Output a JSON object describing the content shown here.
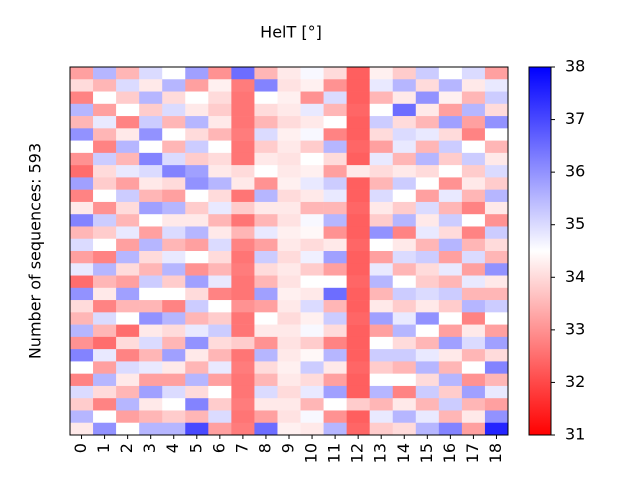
{
  "chart_data": {
    "type": "heatmap",
    "title": "HelT [°]",
    "ylabel": "Number of sequences: 593",
    "categories": [
      "0",
      "1",
      "2",
      "3",
      "4",
      "5",
      "6",
      "7",
      "8",
      "9",
      "10",
      "11",
      "12",
      "13",
      "14",
      "15",
      "16",
      "17",
      "18"
    ],
    "clim": [
      31,
      38
    ],
    "cticks": [
      31,
      32,
      33,
      34,
      35,
      36,
      37,
      38
    ],
    "colormap": "bwr",
    "z": [
      [
        33.2,
        35.5,
        33.5,
        35.0,
        34.5,
        35.8,
        33.0,
        36.5,
        33.5,
        34.2,
        34.6,
        34.0,
        32.3,
        34.3,
        33.8,
        35.2,
        34.5,
        35.0,
        33.2
      ],
      [
        34.0,
        33.5,
        35.0,
        34.2,
        35.5,
        33.2,
        34.3,
        32.7,
        36.2,
        34.1,
        34.3,
        33.0,
        32.3,
        34.8,
        35.5,
        34.0,
        35.5,
        34.2,
        34.8
      ],
      [
        32.8,
        34.5,
        33.8,
        35.5,
        34.0,
        34.5,
        34.0,
        32.6,
        34.5,
        34.3,
        33.0,
        35.0,
        32.3,
        33.5,
        34.2,
        36.0,
        34.3,
        33.5,
        35.2
      ],
      [
        35.5,
        33.2,
        34.5,
        33.8,
        35.0,
        34.2,
        33.8,
        32.6,
        34.0,
        34.2,
        34.8,
        33.5,
        32.4,
        34.5,
        36.5,
        34.2,
        33.2,
        35.5,
        34.0
      ],
      [
        33.5,
        34.8,
        32.8,
        35.2,
        33.5,
        35.5,
        34.2,
        32.6,
        33.5,
        34.0,
        34.2,
        34.5,
        32.3,
        35.2,
        34.0,
        33.5,
        35.8,
        33.2,
        36.0
      ],
      [
        36.0,
        33.5,
        34.2,
        36.0,
        34.5,
        34.0,
        33.5,
        32.7,
        35.0,
        34.3,
        34.6,
        32.8,
        32.3,
        34.0,
        35.0,
        34.8,
        34.0,
        32.8,
        34.5
      ],
      [
        34.5,
        32.8,
        35.5,
        34.5,
        33.5,
        35.2,
        34.5,
        32.6,
        33.8,
        34.2,
        33.8,
        35.5,
        32.4,
        33.2,
        34.8,
        33.5,
        35.2,
        34.5,
        33.5
      ],
      [
        33.0,
        35.2,
        33.5,
        36.2,
        35.0,
        33.8,
        34.0,
        32.6,
        34.2,
        34.1,
        34.5,
        34.0,
        32.3,
        34.8,
        33.5,
        35.5,
        33.8,
        35.2,
        34.2
      ],
      [
        32.5,
        34.0,
        34.8,
        35.0,
        36.2,
        35.8,
        34.2,
        34.0,
        34.5,
        34.2,
        34.3,
        33.2,
        34.2,
        34.0,
        34.2,
        34.0,
        34.5,
        33.8,
        35.0
      ],
      [
        35.8,
        33.8,
        33.2,
        34.2,
        34.0,
        36.0,
        35.5,
        34.2,
        33.0,
        34.3,
        34.8,
        35.2,
        32.3,
        33.5,
        35.2,
        34.5,
        33.0,
        34.2,
        33.8
      ],
      [
        32.8,
        34.5,
        35.2,
        33.5,
        33.2,
        34.5,
        34.0,
        32.6,
        35.5,
        34.0,
        34.2,
        34.8,
        32.3,
        35.0,
        34.5,
        33.2,
        34.8,
        33.5,
        35.5
      ],
      [
        34.2,
        33.0,
        34.0,
        35.8,
        35.5,
        33.8,
        34.8,
        33.8,
        34.2,
        34.2,
        33.5,
        33.5,
        32.4,
        34.2,
        33.8,
        35.0,
        33.5,
        32.8,
        34.2
      ],
      [
        36.2,
        35.2,
        33.5,
        34.5,
        34.2,
        34.2,
        33.5,
        32.6,
        33.5,
        34.1,
        34.6,
        35.5,
        32.3,
        33.8,
        35.5,
        34.2,
        35.2,
        34.5,
        33.0
      ],
      [
        33.5,
        33.8,
        34.8,
        33.2,
        35.0,
        35.5,
        34.2,
        33.5,
        34.8,
        34.3,
        34.4,
        33.0,
        32.3,
        36.0,
        32.8,
        34.8,
        34.0,
        32.8,
        35.2
      ],
      [
        35.0,
        34.5,
        33.2,
        35.5,
        33.5,
        33.2,
        35.0,
        32.8,
        33.2,
        34.2,
        34.0,
        34.2,
        32.4,
        34.5,
        34.2,
        33.5,
        35.5,
        33.5,
        34.0
      ],
      [
        33.2,
        32.8,
        35.5,
        34.0,
        34.8,
        34.5,
        34.0,
        32.6,
        35.2,
        34.0,
        34.7,
        35.8,
        32.3,
        33.2,
        35.0,
        35.2,
        33.2,
        35.0,
        33.5
      ],
      [
        34.8,
        35.5,
        34.0,
        33.5,
        35.5,
        33.0,
        33.5,
        32.7,
        34.0,
        34.2,
        33.8,
        33.2,
        32.3,
        34.8,
        33.5,
        34.0,
        34.8,
        33.2,
        36.0
      ],
      [
        32.5,
        33.5,
        33.2,
        35.2,
        33.8,
        35.8,
        34.8,
        32.6,
        33.5,
        34.1,
        34.5,
        34.5,
        32.4,
        35.5,
        34.5,
        33.8,
        33.5,
        34.8,
        34.2
      ],
      [
        36.0,
        34.2,
        35.8,
        34.5,
        34.5,
        34.0,
        32.8,
        32.6,
        35.8,
        34.3,
        34.2,
        36.5,
        32.3,
        33.5,
        35.2,
        35.0,
        35.2,
        33.5,
        33.5
      ],
      [
        34.0,
        32.8,
        33.5,
        33.5,
        32.8,
        35.2,
        34.5,
        33.0,
        33.2,
        34.2,
        35.0,
        33.5,
        32.3,
        34.2,
        33.8,
        34.2,
        33.8,
        35.5,
        35.2
      ],
      [
        33.5,
        35.0,
        34.5,
        36.0,
        35.5,
        33.5,
        33.8,
        32.6,
        34.5,
        34.0,
        34.3,
        35.2,
        32.4,
        35.8,
        34.8,
        36.0,
        34.5,
        32.8,
        34.5
      ],
      [
        35.5,
        33.5,
        32.5,
        34.2,
        34.0,
        34.8,
        35.2,
        32.6,
        34.2,
        34.2,
        34.6,
        34.0,
        32.3,
        33.2,
        35.5,
        34.5,
        33.2,
        34.2,
        33.2
      ],
      [
        33.0,
        32.5,
        34.0,
        35.0,
        33.5,
        36.0,
        34.0,
        33.8,
        33.0,
        34.1,
        33.8,
        32.8,
        32.3,
        34.5,
        34.0,
        33.5,
        35.8,
        35.0,
        35.8
      ],
      [
        36.2,
        34.8,
        32.8,
        33.5,
        35.8,
        34.2,
        33.5,
        32.6,
        35.5,
        34.2,
        34.4,
        35.5,
        32.3,
        35.2,
        35.2,
        34.8,
        34.2,
        33.5,
        34.0
      ],
      [
        34.5,
        33.2,
        35.0,
        34.8,
        34.2,
        33.5,
        34.8,
        32.7,
        34.0,
        34.3,
        35.2,
        34.2,
        32.4,
        33.8,
        33.5,
        35.5,
        33.5,
        34.5,
        36.2
      ],
      [
        32.8,
        35.5,
        34.2,
        33.2,
        33.2,
        35.5,
        33.2,
        32.6,
        33.5,
        34.2,
        34.0,
        33.2,
        32.3,
        34.5,
        34.5,
        34.0,
        35.5,
        33.0,
        33.5
      ],
      [
        35.0,
        34.0,
        33.5,
        35.8,
        35.0,
        34.0,
        34.5,
        32.6,
        35.0,
        34.0,
        34.8,
        35.8,
        32.3,
        35.5,
        32.8,
        35.2,
        33.8,
        35.8,
        34.8
      ],
      [
        33.8,
        32.8,
        35.5,
        34.2,
        34.5,
        36.2,
        33.8,
        32.7,
        34.2,
        34.2,
        33.5,
        34.5,
        33.8,
        33.5,
        34.2,
        33.5,
        35.2,
        33.5,
        33.2
      ],
      [
        35.5,
        34.5,
        33.2,
        33.5,
        33.8,
        33.5,
        35.0,
        32.6,
        33.2,
        34.1,
        34.6,
        33.0,
        32.3,
        34.8,
        35.5,
        34.8,
        33.5,
        34.2,
        36.0
      ],
      [
        34.2,
        36.0,
        34.5,
        35.5,
        35.5,
        37.0,
        33.2,
        32.7,
        36.5,
        34.3,
        34.2,
        35.5,
        32.4,
        33.8,
        34.0,
        35.5,
        36.2,
        33.2,
        37.5
      ]
    ]
  }
}
